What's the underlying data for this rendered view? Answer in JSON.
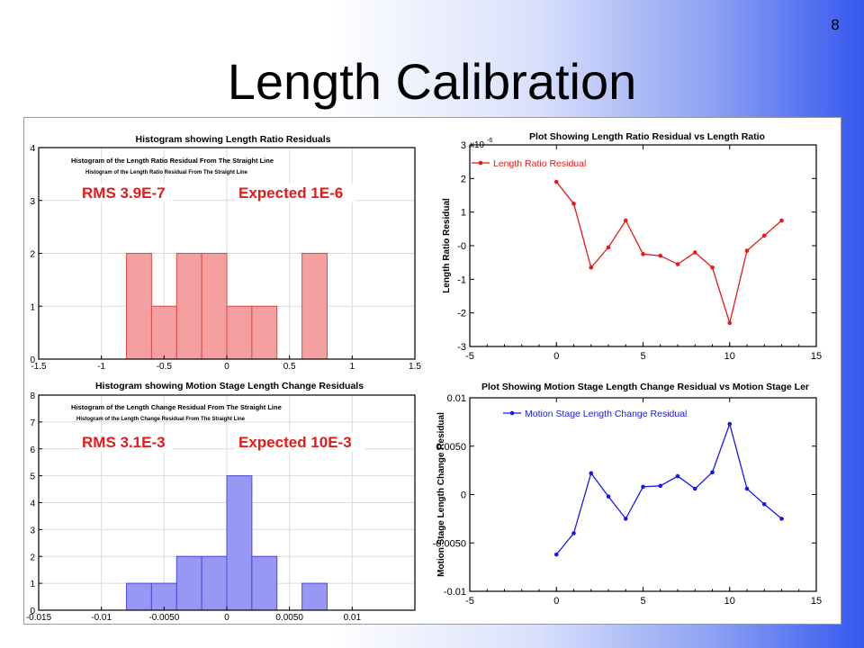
{
  "slide": {
    "page_number": "8",
    "title": "Length Calibration"
  },
  "chart_data": [
    {
      "type": "bar",
      "title": "Histogram showing Length Ratio Residuals",
      "annotations": [
        "Histogram of the Length Ratio Residual From The Straight Line",
        "Histogram of the Length Ratio Residual From The Straight Line"
      ],
      "highlight_labels": [
        "RMS 3.9E-7",
        "Expected 1E-6"
      ],
      "bin_edges": [
        -0.8,
        -0.6,
        -0.4,
        -0.2,
        0.0,
        0.2,
        0.4,
        0.6,
        0.8
      ],
      "values": [
        2,
        1,
        2,
        2,
        1,
        1,
        0,
        2
      ],
      "xlim": [
        -1.5,
        1.5
      ],
      "ylim": [
        0,
        4
      ],
      "xticks": [
        -1.5,
        -1,
        -0.5,
        0,
        0.5,
        1,
        1.5
      ],
      "xtick_labels": [
        "-1.5",
        "-1",
        "-0.5",
        "0",
        "0.5",
        "1",
        "1.5"
      ],
      "yticks": [
        0,
        1,
        2,
        3,
        4
      ],
      "ytick_labels": [
        "0",
        "1",
        "2",
        "3",
        "4"
      ],
      "grid": true,
      "fill_color": "#f4a0a0",
      "edge_color": "#e04848"
    },
    {
      "type": "line",
      "title": "Plot Showing Length Ratio Residual vs Length Ratio",
      "ylabel": "Length Ratio Residual",
      "y_scale_label": "x10",
      "y_scale_exponent": "-6",
      "series": [
        {
          "name": "Length Ratio Residual",
          "color": "#e81818",
          "x": [
            0,
            1,
            2,
            3,
            4,
            5,
            6,
            7,
            8,
            9,
            10,
            11,
            12,
            13
          ],
          "y": [
            1.9,
            1.25,
            -0.65,
            -0.05,
            0.75,
            -0.25,
            -0.3,
            -0.55,
            -0.2,
            -0.65,
            -2.3,
            -0.15,
            0.3,
            0.75
          ]
        }
      ],
      "xlim": [
        -5,
        15
      ],
      "ylim": [
        -3,
        3
      ],
      "xticks": [
        -5,
        0,
        5,
        10,
        15
      ],
      "xtick_labels": [
        "-5",
        "0",
        "5",
        "10",
        "15"
      ],
      "yticks": [
        -3,
        -2,
        -1,
        0,
        1,
        2,
        3
      ],
      "ytick_labels": [
        "-3",
        "-2",
        "-1",
        "-0",
        "1",
        "2",
        "3"
      ],
      "grid": false,
      "legend": "top-left"
    },
    {
      "type": "bar",
      "title": "Histogram showing Motion Stage Length Change Residuals",
      "annotations": [
        "Histogram of the Length Change Residual From The Straight Line",
        "Histogram of the Length Change Residual From The Straight Line"
      ],
      "highlight_labels": [
        "RMS 3.1E-3",
        "Expected 10E-3"
      ],
      "bin_edges": [
        -0.008,
        -0.006,
        -0.004,
        -0.002,
        0.0,
        0.002,
        0.004,
        0.006,
        0.008
      ],
      "values": [
        1,
        1,
        2,
        2,
        5,
        2,
        0,
        1
      ],
      "xlim": [
        -0.015,
        0.015
      ],
      "ylim": [
        0,
        8
      ],
      "xticks": [
        -0.015,
        -0.01,
        -0.005,
        0,
        0.005,
        0.01
      ],
      "xtick_labels": [
        "-0.015",
        "-0.01",
        "-0.0050",
        "0",
        "0.0050",
        "0.01"
      ],
      "yticks": [
        0,
        1,
        2,
        3,
        4,
        5,
        6,
        7,
        8
      ],
      "ytick_labels": [
        "0",
        "1",
        "2",
        "3",
        "4",
        "5",
        "6",
        "7",
        "8"
      ],
      "grid": true,
      "fill_color": "#9898f4",
      "edge_color": "#4848e0"
    },
    {
      "type": "line",
      "title": "Plot Showing Motion Stage Length Change Residual vs Motion Stage Ler",
      "ylabel": "Motion Stage Length Change Residual",
      "series": [
        {
          "name": "Motion Stage Length Change Residual",
          "color": "#1818e8",
          "x": [
            0,
            1,
            2,
            3,
            4,
            5,
            6,
            7,
            8,
            9,
            10,
            11,
            12,
            13
          ],
          "y": [
            -0.0062,
            -0.004,
            0.0022,
            -0.0002,
            -0.0025,
            0.0008,
            0.0009,
            0.0019,
            0.0006,
            0.0023,
            0.0073,
            0.0006,
            -0.001,
            -0.0025
          ]
        }
      ],
      "xlim": [
        -5,
        15
      ],
      "ylim": [
        -0.01,
        0.01
      ],
      "xticks": [
        -5,
        0,
        5,
        10,
        15
      ],
      "xtick_labels": [
        "-5",
        "0",
        "5",
        "10",
        "15"
      ],
      "yticks": [
        -0.01,
        -0.005,
        0,
        0.005,
        0.01
      ],
      "ytick_labels": [
        "-0.01",
        "-0.0050",
        "0",
        "0.0050",
        "0.01"
      ],
      "grid": false,
      "legend": "top-left"
    }
  ]
}
